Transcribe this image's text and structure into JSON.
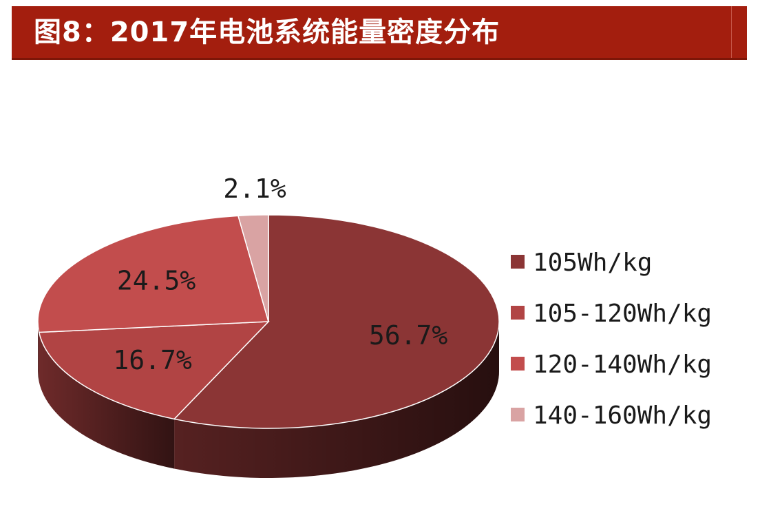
{
  "title": "图8：2017年电池系统能量密度分布",
  "chart_data": {
    "type": "pie",
    "title": "图8：2017年电池系统能量密度分布",
    "legend_position": "right",
    "three_d": true,
    "slices": [
      {
        "name": "105Wh/kg",
        "value": 56.7,
        "label": "56.7%",
        "color": "#8b3535"
      },
      {
        "name": "105-120Wh/kg",
        "value": 16.7,
        "label": "16.7%",
        "color": "#b14444"
      },
      {
        "name": "120-140Wh/kg",
        "value": 24.5,
        "label": "24.5%",
        "color": "#c24d4d"
      },
      {
        "name": "140-160Wh/kg",
        "value": 2.1,
        "label": "2.1%",
        "color": "#d9a3a3"
      }
    ]
  }
}
